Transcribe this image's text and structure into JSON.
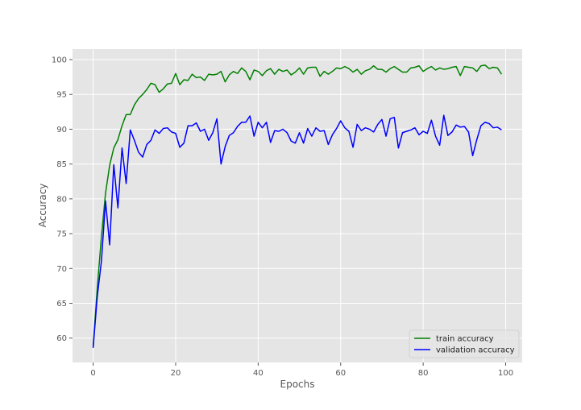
{
  "chart_data": {
    "type": "line",
    "title": "",
    "xlabel": "Epochs",
    "ylabel": "Accuracy",
    "xlim": [
      -5,
      104
    ],
    "ylim": [
      56.5,
      101.5
    ],
    "xticks": [
      0,
      20,
      40,
      60,
      80,
      100
    ],
    "yticks": [
      60,
      65,
      70,
      75,
      80,
      85,
      90,
      95,
      100
    ],
    "grid": true,
    "background_color": "#e5e5e5",
    "legend_position": "lower-right",
    "series": [
      {
        "name": "train accuracy",
        "color": "#008000",
        "x": [
          0,
          1,
          2,
          3,
          4,
          5,
          6,
          7,
          8,
          9,
          10,
          11,
          12,
          13,
          14,
          15,
          16,
          17,
          18,
          19,
          20,
          21,
          22,
          23,
          24,
          25,
          26,
          27,
          28,
          29,
          30,
          31,
          32,
          33,
          34,
          35,
          36,
          37,
          38,
          39,
          40,
          41,
          42,
          43,
          44,
          45,
          46,
          47,
          48,
          49,
          50,
          51,
          52,
          53,
          54,
          55,
          56,
          57,
          58,
          59,
          60,
          61,
          62,
          63,
          64,
          65,
          66,
          67,
          68,
          69,
          70,
          71,
          72,
          73,
          74,
          75,
          76,
          77,
          78,
          79,
          80,
          81,
          82,
          83,
          84,
          85,
          86,
          87,
          88,
          89,
          90,
          91,
          92,
          93,
          94,
          95,
          96,
          97,
          98,
          99
        ],
        "values": [
          58.8,
          67.2,
          74.5,
          80.8,
          84.8,
          87.3,
          88.5,
          90.5,
          92.1,
          92.1,
          93.5,
          94.4,
          95.0,
          95.7,
          96.6,
          96.4,
          95.3,
          95.8,
          96.5,
          96.6,
          98.0,
          96.4,
          97.1,
          97.0,
          97.9,
          97.4,
          97.5,
          97.0,
          97.9,
          97.8,
          97.9,
          98.3,
          96.8,
          97.8,
          98.3,
          98.0,
          98.8,
          98.3,
          97.1,
          98.5,
          98.3,
          97.7,
          98.4,
          98.7,
          97.9,
          98.6,
          98.3,
          98.5,
          97.8,
          98.2,
          98.8,
          97.9,
          98.8,
          98.9,
          98.9,
          97.6,
          98.3,
          97.9,
          98.3,
          98.8,
          98.7,
          99.0,
          98.7,
          98.2,
          98.6,
          97.9,
          98.4,
          98.6,
          99.1,
          98.6,
          98.6,
          98.2,
          98.7,
          99.0,
          98.6,
          98.2,
          98.2,
          98.8,
          98.9,
          99.1,
          98.3,
          98.7,
          99.0,
          98.5,
          98.8,
          98.6,
          98.7,
          98.9,
          99.0,
          97.7,
          99.0,
          98.9,
          98.8,
          98.3,
          99.1,
          99.2,
          98.7,
          98.9,
          98.8,
          97.9
        ]
      },
      {
        "name": "validation accuracy",
        "color": "#0000ff",
        "x": [
          0,
          1,
          2,
          3,
          4,
          5,
          6,
          7,
          8,
          9,
          10,
          11,
          12,
          13,
          14,
          15,
          16,
          17,
          18,
          19,
          20,
          21,
          22,
          23,
          24,
          25,
          26,
          27,
          28,
          29,
          30,
          31,
          32,
          33,
          34,
          35,
          36,
          37,
          38,
          39,
          40,
          41,
          42,
          43,
          44,
          45,
          46,
          47,
          48,
          49,
          50,
          51,
          52,
          53,
          54,
          55,
          56,
          57,
          58,
          59,
          60,
          61,
          62,
          63,
          64,
          65,
          66,
          67,
          68,
          69,
          70,
          71,
          72,
          73,
          74,
          75,
          76,
          77,
          78,
          79,
          80,
          81,
          82,
          83,
          84,
          85,
          86,
          87,
          88,
          89,
          90,
          91,
          92,
          93,
          94,
          95,
          96,
          97,
          98,
          99
        ],
        "values": [
          58.6,
          66.0,
          71.0,
          79.7,
          73.4,
          84.9,
          78.7,
          87.3,
          82.2,
          89.9,
          88.4,
          86.7,
          86.0,
          87.8,
          88.4,
          89.9,
          89.4,
          90.1,
          90.2,
          89.6,
          89.4,
          87.4,
          88.0,
          90.5,
          90.5,
          90.9,
          89.7,
          90.0,
          88.4,
          89.5,
          91.5,
          85.0,
          87.5,
          89.1,
          89.5,
          90.4,
          91.0,
          91.0,
          91.9,
          89.0,
          91.0,
          90.2,
          91.0,
          88.1,
          89.8,
          89.7,
          90.0,
          89.5,
          88.3,
          88.0,
          89.5,
          88.0,
          90.1,
          89.0,
          90.2,
          89.7,
          89.8,
          87.8,
          89.2,
          90.1,
          91.2,
          90.2,
          89.7,
          87.4,
          90.7,
          89.8,
          90.2,
          90.0,
          89.6,
          90.7,
          91.4,
          89.0,
          91.5,
          91.7,
          87.3,
          89.5,
          89.7,
          89.9,
          90.2,
          89.2,
          89.7,
          89.4,
          91.3,
          89.0,
          87.7,
          92.0,
          89.1,
          89.6,
          90.6,
          90.3,
          90.4,
          89.6,
          86.2,
          88.5,
          90.5,
          91.0,
          90.8,
          90.2,
          90.3,
          89.9
        ]
      }
    ]
  }
}
